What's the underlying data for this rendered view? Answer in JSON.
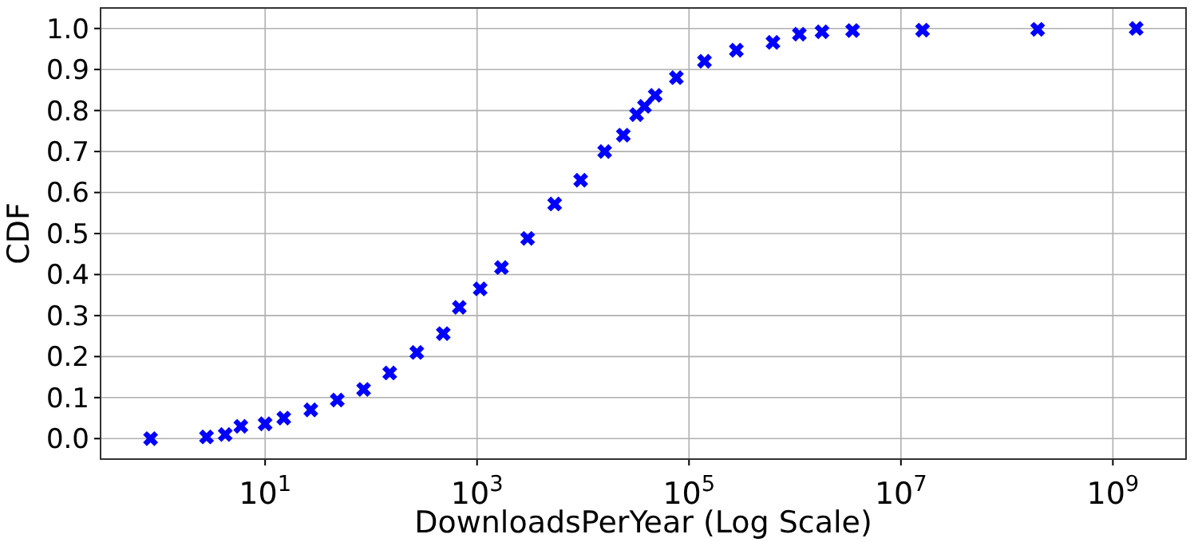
{
  "chart_data": {
    "type": "scatter",
    "xlabel": "DownloadsPerYear (Log Scale)",
    "ylabel": "CDF",
    "log": "x",
    "grid": true,
    "marker": "cross",
    "xlim": [
      0.28,
      4900000000
    ],
    "ylim": [
      -0.05,
      1.05
    ],
    "xticks": [
      {
        "value": 10,
        "label": "10$^{1}$"
      },
      {
        "value": 1000,
        "label": "10$^{3}$"
      },
      {
        "value": 100000,
        "label": "10$^{5}$"
      },
      {
        "value": 10000000,
        "label": "10$^{7}$"
      },
      {
        "value": 1000000000,
        "label": "10$^{9}$"
      }
    ],
    "yticks": [
      {
        "value": 0,
        "label": "0.0"
      },
      {
        "value": 0.1,
        "label": "0.1"
      },
      {
        "value": 0.2,
        "label": "0.2"
      },
      {
        "value": 0.3,
        "label": "0.3"
      },
      {
        "value": 0.4,
        "label": "0.4"
      },
      {
        "value": 0.5,
        "label": "0.5"
      },
      {
        "value": 0.6,
        "label": "0.6"
      },
      {
        "value": 0.7,
        "label": "0.7"
      },
      {
        "value": 0.8,
        "label": "0.8"
      },
      {
        "value": 0.9,
        "label": "0.9"
      },
      {
        "value": 1,
        "label": "1.0"
      }
    ],
    "series": [
      {
        "color": "#0000ff",
        "x": [
          0.83,
          2.8,
          4.2,
          5.9,
          10,
          15,
          27,
          48,
          85,
          150,
          270,
          480,
          680,
          1070,
          1700,
          3000,
          5400,
          9500,
          16000,
          24000,
          32000,
          38000,
          48000,
          76000,
          140000,
          280000,
          620000,
          1100000,
          1800000,
          3500000,
          16000000,
          195000000,
          1660000000
        ],
        "values": [
          0,
          0.004,
          0.01,
          0.03,
          0.036,
          0.05,
          0.07,
          0.094,
          0.12,
          0.16,
          0.21,
          0.256,
          0.32,
          0.365,
          0.417,
          0.488,
          0.572,
          0.63,
          0.7,
          0.74,
          0.79,
          0.81,
          0.837,
          0.88,
          0.92,
          0.947,
          0.966,
          0.986,
          0.992,
          0.995,
          0.996,
          0.998,
          1.0
        ]
      }
    ]
  }
}
